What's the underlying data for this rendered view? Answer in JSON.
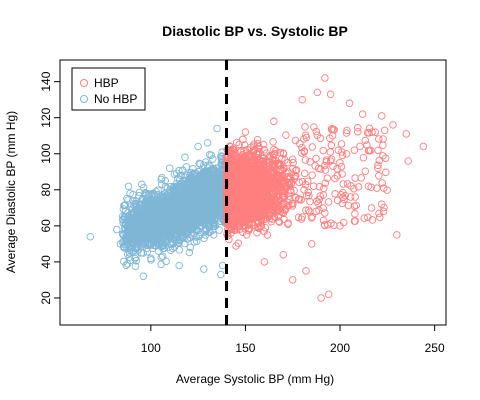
{
  "chart_data": {
    "type": "scatter",
    "title": "Diastolic BP vs. Systolic BP",
    "xlabel": "Average Systolic BP (mm Hg)",
    "ylabel": "Average Diastolic BP (mm Hg)",
    "xlim": [
      52,
      256
    ],
    "ylim": [
      5,
      152
    ],
    "xticks": [
      100,
      150,
      200,
      250
    ],
    "yticks": [
      20,
      40,
      60,
      80,
      100,
      120,
      140
    ],
    "threshold": {
      "x": 140,
      "style": "dashed"
    },
    "legend": {
      "position": "top-left"
    },
    "series": [
      {
        "name": "HBP",
        "color": "#FF7F7F",
        "marker": "open-circle",
        "core": {
          "x_range": [
            140,
            185
          ],
          "y_mean": 80,
          "y_sd": 9
        },
        "points": [
          {
            "x": 192,
            "y": 142
          },
          {
            "x": 188,
            "y": 134
          },
          {
            "x": 195,
            "y": 133
          },
          {
            "x": 180,
            "y": 130
          },
          {
            "x": 205,
            "y": 128
          },
          {
            "x": 212,
            "y": 122
          },
          {
            "x": 222,
            "y": 121
          },
          {
            "x": 228,
            "y": 116
          },
          {
            "x": 235,
            "y": 111
          },
          {
            "x": 244,
            "y": 104
          },
          {
            "x": 236,
            "y": 96
          },
          {
            "x": 220,
            "y": 92
          },
          {
            "x": 215,
            "y": 82
          },
          {
            "x": 208,
            "y": 76
          },
          {
            "x": 222,
            "y": 72
          },
          {
            "x": 230,
            "y": 55
          },
          {
            "x": 223,
            "y": 68
          },
          {
            "x": 200,
            "y": 60
          },
          {
            "x": 185,
            "y": 50
          },
          {
            "x": 170,
            "y": 44
          },
          {
            "x": 182,
            "y": 35
          },
          {
            "x": 175,
            "y": 30
          },
          {
            "x": 190,
            "y": 20
          },
          {
            "x": 194,
            "y": 22
          },
          {
            "x": 160,
            "y": 40
          },
          {
            "x": 150,
            "y": 112
          },
          {
            "x": 165,
            "y": 118
          }
        ]
      },
      {
        "name": "No HBP",
        "color": "#7FB6D6",
        "marker": "open-circle",
        "core": {
          "x_range": [
            85,
            140
          ],
          "y_at_x85": 56,
          "y_at_x140": 80,
          "y_sd": 8
        },
        "points": [
          {
            "x": 68,
            "y": 54
          },
          {
            "x": 82,
            "y": 58
          },
          {
            "x": 84,
            "y": 50
          },
          {
            "x": 95,
            "y": 45
          },
          {
            "x": 100,
            "y": 42
          },
          {
            "x": 96,
            "y": 32
          },
          {
            "x": 115,
            "y": 38
          },
          {
            "x": 128,
            "y": 36
          },
          {
            "x": 137,
            "y": 33
          },
          {
            "x": 138,
            "y": 38
          },
          {
            "x": 135,
            "y": 114
          },
          {
            "x": 130,
            "y": 106
          },
          {
            "x": 125,
            "y": 104
          },
          {
            "x": 118,
            "y": 98
          },
          {
            "x": 110,
            "y": 92
          }
        ]
      }
    ]
  }
}
